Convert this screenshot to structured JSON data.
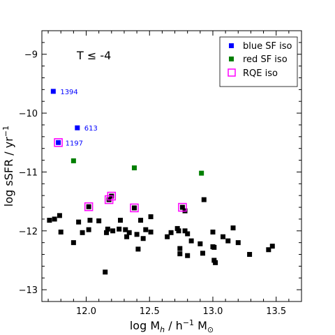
{
  "chart_data": {
    "type": "scatter",
    "title": "",
    "annotation": "T ≤ -4",
    "xlabel": {
      "main": "log M",
      "sub": "h",
      "mid": " / h",
      "sup": "−1",
      "end": " M",
      "end_sub": "⊙"
    },
    "ylabel": {
      "main": "log sSFR / yr",
      "sup": "−1"
    },
    "xlim": [
      11.65,
      13.7
    ],
    "ylim": [
      -13.2,
      -8.6
    ],
    "xticks": [
      12.0,
      12.5,
      13.0,
      13.5
    ],
    "xtick_labels": [
      "12.0",
      "12.5",
      "13.0",
      "13.5"
    ],
    "yticks": [
      -9,
      -10,
      -11,
      -12,
      -13
    ],
    "ytick_labels": [
      "−9",
      "−10",
      "−11",
      "−12",
      "−13"
    ],
    "grid": false,
    "legend_position": "top-right",
    "legend": [
      {
        "label": "blue SF iso",
        "marker": "filled-square",
        "color": "#0000ff"
      },
      {
        "label": "red SF iso",
        "marker": "filled-square",
        "color": "#007f00"
      },
      {
        "label": "RQE iso",
        "marker": "open-square",
        "color": "#ff00ff"
      }
    ],
    "series": [
      {
        "name": "blue SF iso",
        "color": "#0000ff",
        "marker": "filled-square",
        "points": [
          {
            "x": 11.74,
            "y": -9.63,
            "label": "1394"
          },
          {
            "x": 11.93,
            "y": -10.25,
            "label": "613"
          },
          {
            "x": 11.78,
            "y": -10.5,
            "label": "1197"
          }
        ]
      },
      {
        "name": "red SF iso",
        "color": "#007f00",
        "marker": "filled-square",
        "points": [
          {
            "x": 11.9,
            "y": -10.81
          },
          {
            "x": 12.38,
            "y": -10.93
          },
          {
            "x": 12.91,
            "y": -11.02
          }
        ]
      },
      {
        "name": "RQE iso",
        "color": "#ff00ff",
        "marker": "open-square",
        "points": [
          {
            "x": 11.78,
            "y": -10.5
          },
          {
            "x": 12.02,
            "y": -11.59
          },
          {
            "x": 12.18,
            "y": -11.47
          },
          {
            "x": 12.2,
            "y": -11.41
          },
          {
            "x": 12.38,
            "y": -11.61
          },
          {
            "x": 12.76,
            "y": -11.6
          }
        ]
      },
      {
        "name": "",
        "color": "#000000",
        "marker": "filled-square",
        "points": [
          {
            "x": 11.71,
            "y": -11.82
          },
          {
            "x": 11.75,
            "y": -11.8
          },
          {
            "x": 11.79,
            "y": -11.74
          },
          {
            "x": 11.8,
            "y": -12.02
          },
          {
            "x": 11.9,
            "y": -12.2
          },
          {
            "x": 11.94,
            "y": -11.85
          },
          {
            "x": 11.97,
            "y": -12.03
          },
          {
            "x": 12.02,
            "y": -11.59
          },
          {
            "x": 12.03,
            "y": -11.82
          },
          {
            "x": 12.02,
            "y": -11.98
          },
          {
            "x": 12.1,
            "y": -11.83
          },
          {
            "x": 12.15,
            "y": -12.7
          },
          {
            "x": 12.16,
            "y": -12.03
          },
          {
            "x": 12.17,
            "y": -11.97
          },
          {
            "x": 12.18,
            "y": -11.47
          },
          {
            "x": 12.2,
            "y": -11.41
          },
          {
            "x": 12.21,
            "y": -12.0
          },
          {
            "x": 12.26,
            "y": -11.97
          },
          {
            "x": 12.27,
            "y": -11.82
          },
          {
            "x": 12.31,
            "y": -11.98
          },
          {
            "x": 12.32,
            "y": -12.1
          },
          {
            "x": 12.34,
            "y": -12.03
          },
          {
            "x": 12.38,
            "y": -11.61
          },
          {
            "x": 12.4,
            "y": -12.06
          },
          {
            "x": 12.41,
            "y": -12.31
          },
          {
            "x": 12.43,
            "y": -11.82
          },
          {
            "x": 12.45,
            "y": -12.13
          },
          {
            "x": 12.47,
            "y": -11.98
          },
          {
            "x": 12.51,
            "y": -11.76
          },
          {
            "x": 12.51,
            "y": -12.02
          },
          {
            "x": 12.64,
            "y": -12.1
          },
          {
            "x": 12.67,
            "y": -12.03
          },
          {
            "x": 12.72,
            "y": -11.96
          },
          {
            "x": 12.73,
            "y": -12.0
          },
          {
            "x": 12.74,
            "y": -12.3
          },
          {
            "x": 12.74,
            "y": -12.39
          },
          {
            "x": 12.76,
            "y": -11.6
          },
          {
            "x": 12.78,
            "y": -11.66
          },
          {
            "x": 12.78,
            "y": -12.0
          },
          {
            "x": 12.8,
            "y": -12.05
          },
          {
            "x": 12.8,
            "y": -12.42
          },
          {
            "x": 12.83,
            "y": -12.17
          },
          {
            "x": 12.9,
            "y": -12.22
          },
          {
            "x": 12.92,
            "y": -12.38
          },
          {
            "x": 12.93,
            "y": -11.47
          },
          {
            "x": 13.0,
            "y": -12.02
          },
          {
            "x": 13.0,
            "y": -12.27
          },
          {
            "x": 13.01,
            "y": -12.28
          },
          {
            "x": 13.01,
            "y": -12.5
          },
          {
            "x": 13.02,
            "y": -12.54
          },
          {
            "x": 13.08,
            "y": -12.1
          },
          {
            "x": 13.12,
            "y": -12.17
          },
          {
            "x": 13.16,
            "y": -11.95
          },
          {
            "x": 13.2,
            "y": -12.2
          },
          {
            "x": 13.29,
            "y": -12.4
          },
          {
            "x": 13.44,
            "y": -12.32
          },
          {
            "x": 13.47,
            "y": -12.26
          }
        ]
      }
    ]
  }
}
